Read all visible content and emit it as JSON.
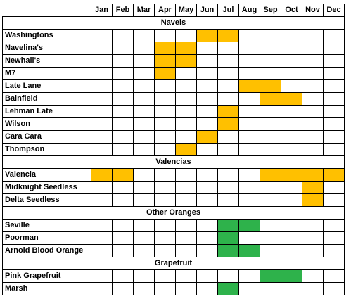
{
  "months": [
    "Jan",
    "Feb",
    "Mar",
    "Apr",
    "May",
    "Jun",
    "Jul",
    "Aug",
    "Sep",
    "Oct",
    "Nov",
    "Dec"
  ],
  "colors": {
    "orange": "#FFC000",
    "green": "#2EB24B",
    "empty": "#FFFFFF"
  },
  "sections": [
    {
      "title": "Navels",
      "rows": [
        {
          "name": "Washingtons",
          "fill": [
            0,
            0,
            0,
            0,
            0,
            1,
            1,
            0,
            0,
            0,
            0,
            0
          ],
          "color": "orange"
        },
        {
          "name": "Navelina's",
          "fill": [
            0,
            0,
            0,
            1,
            1,
            0,
            0,
            0,
            0,
            0,
            0,
            0
          ],
          "color": "orange"
        },
        {
          "name": "Newhall's",
          "fill": [
            0,
            0,
            0,
            1,
            1,
            0,
            0,
            0,
            0,
            0,
            0,
            0
          ],
          "color": "orange"
        },
        {
          "name": "M7",
          "fill": [
            0,
            0,
            0,
            1,
            0,
            0,
            0,
            0,
            0,
            0,
            0,
            0
          ],
          "color": "orange"
        },
        {
          "name": "Late Lane",
          "fill": [
            0,
            0,
            0,
            0,
            0,
            0,
            0,
            1,
            1,
            0,
            0,
            0
          ],
          "color": "orange"
        },
        {
          "name": "Bainfield",
          "fill": [
            0,
            0,
            0,
            0,
            0,
            0,
            0,
            0,
            1,
            1,
            0,
            0
          ],
          "color": "orange"
        },
        {
          "name": "Lehman Late",
          "fill": [
            0,
            0,
            0,
            0,
            0,
            0,
            1,
            0,
            0,
            0,
            0,
            0
          ],
          "color": "orange"
        },
        {
          "name": "Wilson",
          "fill": [
            0,
            0,
            0,
            0,
            0,
            0,
            1,
            0,
            0,
            0,
            0,
            0
          ],
          "color": "orange"
        },
        {
          "name": "Cara Cara",
          "fill": [
            0,
            0,
            0,
            0,
            0,
            1,
            0,
            0,
            0,
            0,
            0,
            0
          ],
          "color": "orange"
        },
        {
          "name": "Thompson",
          "fill": [
            0,
            0,
            0,
            0,
            1,
            0,
            0,
            0,
            0,
            0,
            0,
            0
          ],
          "color": "orange"
        }
      ]
    },
    {
      "title": "Valencias",
      "rows": [
        {
          "name": "Valencia",
          "fill": [
            1,
            1,
            0,
            0,
            0,
            0,
            0,
            0,
            1,
            1,
            1,
            1
          ],
          "color": "orange"
        },
        {
          "name": "Midknight Seedless",
          "fill": [
            0,
            0,
            0,
            0,
            0,
            0,
            0,
            0,
            0,
            0,
            1,
            0
          ],
          "color": "orange"
        },
        {
          "name": "Delta Seedless",
          "fill": [
            0,
            0,
            0,
            0,
            0,
            0,
            0,
            0,
            0,
            0,
            1,
            0
          ],
          "color": "orange"
        }
      ]
    },
    {
      "title": "Other Oranges",
      "rows": [
        {
          "name": "Seville",
          "fill": [
            0,
            0,
            0,
            0,
            0,
            0,
            1,
            1,
            0,
            0,
            0,
            0
          ],
          "color": "green"
        },
        {
          "name": "Poorman",
          "fill": [
            0,
            0,
            0,
            0,
            0,
            0,
            1,
            0,
            0,
            0,
            0,
            0
          ],
          "color": "green"
        },
        {
          "name": "Arnold Blood Orange",
          "fill": [
            0,
            0,
            0,
            0,
            0,
            0,
            1,
            1,
            0,
            0,
            0,
            0
          ],
          "color": "green"
        }
      ]
    },
    {
      "title": "Grapefruit",
      "rows": [
        {
          "name": "Pink Grapefruit",
          "fill": [
            0,
            0,
            0,
            0,
            0,
            0,
            0,
            0,
            1,
            1,
            0,
            0
          ],
          "color": "green"
        },
        {
          "name": "Marsh",
          "fill": [
            0,
            0,
            0,
            0,
            0,
            0,
            1,
            0,
            0,
            0,
            0,
            0
          ],
          "color": "green"
        }
      ]
    }
  ]
}
